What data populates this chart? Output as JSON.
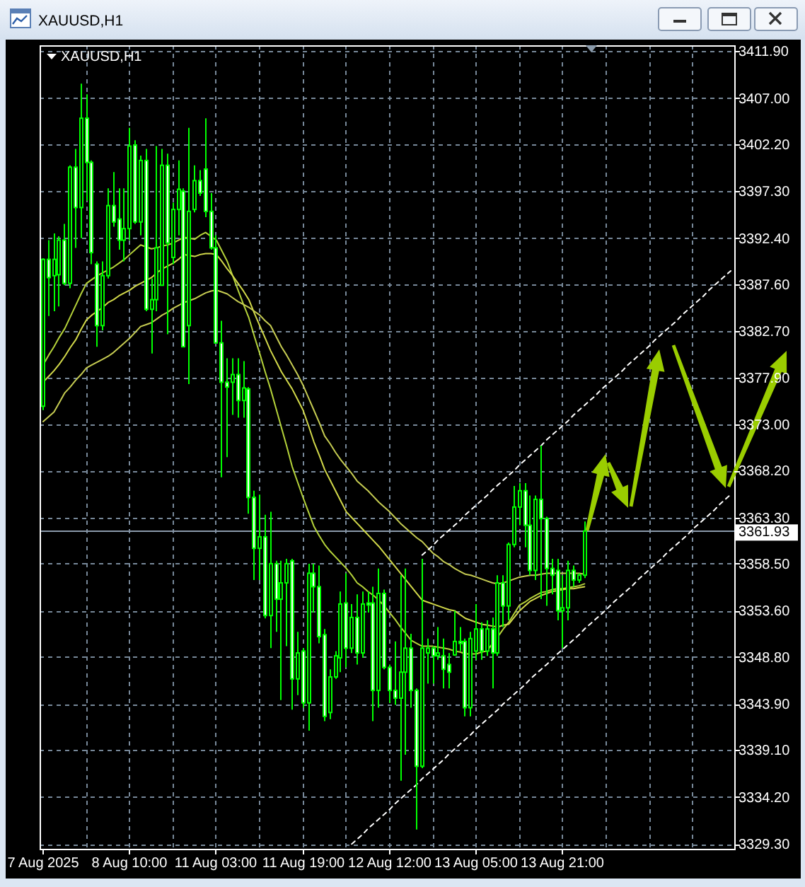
{
  "chart_data": {
    "type": "candlestick",
    "title": "XAUUSD,H1",
    "subtitle": "XAUUSD,H1",
    "categories": [
      "7 Aug 2025",
      null,
      null,
      null,
      null,
      null,
      null,
      null,
      null,
      null,
      null,
      null,
      null,
      null,
      null,
      null,
      "8 Aug 10:00",
      null,
      null,
      null,
      null,
      null,
      null,
      null,
      null,
      null,
      null,
      null,
      null,
      null,
      null,
      null,
      "11 Aug 03:00",
      null,
      null,
      null,
      null,
      null,
      null,
      null,
      null,
      null,
      null,
      null,
      null,
      null,
      null,
      null,
      "11 Aug 19:00",
      null,
      null,
      null,
      null,
      null,
      null,
      null,
      null,
      null,
      null,
      null,
      null,
      null,
      null,
      null,
      "12 Aug 12:00",
      null,
      null,
      null,
      null,
      null,
      null,
      null,
      null,
      null,
      null,
      null,
      null,
      null,
      null,
      null,
      "13 Aug 05:00",
      null,
      null,
      null,
      null,
      null,
      null,
      null,
      null,
      null,
      null,
      null,
      null,
      null,
      null,
      null,
      "13 Aug 21:00",
      null,
      null,
      null,
      null,
      null,
      null,
      null,
      null,
      null,
      null,
      null,
      null,
      null,
      null,
      null,
      null,
      null,
      null,
      null,
      null,
      null,
      null,
      null,
      null,
      null,
      null,
      null,
      null,
      null,
      null,
      null
    ],
    "ylim": [
      3328.8,
      3412.5
    ],
    "yticks": [
      {
        "value": 3411.9,
        "label": "3411.90"
      },
      {
        "value": 3407.0,
        "label": "3407.00"
      },
      {
        "value": 3402.2,
        "label": "3402.20"
      },
      {
        "value": 3397.3,
        "label": "3397.30"
      },
      {
        "value": 3392.4,
        "label": "3392.40"
      },
      {
        "value": 3387.6,
        "label": "3387.60"
      },
      {
        "value": 3382.7,
        "label": "3382.70"
      },
      {
        "value": 3377.9,
        "label": "3377.90"
      },
      {
        "value": 3373.0,
        "label": "3373.00"
      },
      {
        "value": 3368.2,
        "label": "3368.20"
      },
      {
        "value": 3363.3,
        "label": "3363.30"
      },
      {
        "value": 3358.5,
        "label": "3358.50"
      },
      {
        "value": 3353.6,
        "label": "3353.60"
      },
      {
        "value": 3348.8,
        "label": "3348.80"
      },
      {
        "value": 3343.9,
        "label": "3343.90"
      },
      {
        "value": 3339.1,
        "label": "3339.10"
      },
      {
        "value": 3334.2,
        "label": "3334.20"
      },
      {
        "value": 3329.3,
        "label": "3329.30"
      }
    ],
    "grid": true,
    "ref_lines": [
      {
        "axis": "y",
        "value": 3361.93,
        "label": "3361.93",
        "color": "#8a99aa"
      }
    ],
    "series": [
      {
        "type": "line",
        "color": "#b5d33a",
        "values": [
          3379.2,
          3380.2,
          3381.1,
          3382.1,
          3383.0,
          3384.2,
          3385.4,
          3386.6,
          3387.7,
          3388.1,
          3388.5,
          3388.8,
          3389.1,
          3389.4,
          3389.8,
          3390.2,
          3390.7,
          3391.2,
          3391.7,
          3391.5,
          3391.3,
          3391.4,
          3391.6,
          3391.7,
          3391.9,
          3392.2,
          3392.5,
          3392.4,
          3392.3,
          3392.7,
          3393.0,
          3392.6,
          3392.2,
          3391.1,
          3390.0,
          3388.5,
          3387.0,
          3385.5,
          3384.1,
          3382.2,
          3380.4,
          3378.5,
          3376.7,
          3374.7,
          3372.7,
          3370.7,
          3368.6,
          3367.0,
          3365.4,
          3363.9,
          3362.4,
          3361.4,
          3360.5,
          3359.8,
          3359.2,
          3358.6,
          3358.0,
          3357.3,
          3356.5,
          3356.1,
          3355.6,
          3355.2,
          3354.7,
          3354.1,
          3353.4,
          3352.7,
          3351.9,
          3351.2,
          3350.5,
          3350.2,
          3349.9,
          3349.9,
          3349.9,
          3349.8,
          3349.7,
          3349.6,
          3349.4,
          3349.3,
          3349.1,
          3349.1,
          3349.1,
          3349.3,
          3349.4,
          3350.2,
          3350.9,
          3351.7,
          3352.4,
          3353.3,
          3354.2,
          3354.5,
          3354.9,
          3355.2,
          3355.5,
          3355.6,
          3355.8,
          3355.9,
          3355.9,
          3356.0,
          3356.1,
          3356.2,
          3356.4,
          null,
          null,
          null,
          null,
          null,
          null,
          null,
          null,
          null,
          null,
          null,
          null,
          null,
          null,
          null,
          null,
          null,
          null,
          null,
          null,
          null,
          null,
          null,
          null,
          null,
          null,
          null
        ]
      },
      {
        "type": "line",
        "color": "#d2d94a",
        "values": [
          3377.4,
          3378.0,
          3378.6,
          3379.3,
          3380.1,
          3381.0,
          3381.8,
          3382.9,
          3383.9,
          3384.4,
          3384.8,
          3385.2,
          3385.7,
          3386.0,
          3386.4,
          3386.7,
          3387.0,
          3387.4,
          3387.7,
          3388.0,
          3388.3,
          3388.8,
          3389.2,
          3389.5,
          3389.8,
          3390.2,
          3390.7,
          3390.6,
          3390.5,
          3390.7,
          3390.8,
          3390.8,
          3390.7,
          3390.0,
          3389.2,
          3388.5,
          3387.7,
          3386.9,
          3386.0,
          3384.6,
          3383.3,
          3382.0,
          3380.7,
          3379.6,
          3378.5,
          3377.6,
          3376.7,
          3375.6,
          3374.5,
          3372.9,
          3371.2,
          3369.8,
          3368.3,
          3367.2,
          3366.1,
          3365.0,
          3363.9,
          3363.3,
          3362.7,
          3362.1,
          3361.5,
          3360.9,
          3360.3,
          3359.6,
          3358.9,
          3358.2,
          3357.5,
          3356.8,
          3356.1,
          3355.4,
          3354.7,
          3354.5,
          3354.3,
          3354.1,
          3353.9,
          3353.7,
          3353.6,
          3353.2,
          3352.8,
          3352.6,
          3352.4,
          3352.2,
          3352.1,
          3352.0,
          3351.9,
          3352.1,
          3352.2,
          3352.9,
          3353.6,
          3354.1,
          3354.6,
          3354.9,
          3355.2,
          3355.4,
          3355.6,
          3355.7,
          3355.8,
          3355.9,
          3355.9,
          3356.0,
          3356.1,
          null,
          null,
          null,
          null,
          null,
          null,
          null,
          null,
          null,
          null,
          null,
          null,
          null,
          null,
          null,
          null,
          null,
          null,
          null,
          null,
          null,
          null,
          null,
          null,
          null,
          null,
          null
        ]
      },
      {
        "type": "line",
        "color": "#c6cc52",
        "values": [
          3373.3,
          3373.8,
          3374.3,
          3375.3,
          3376.3,
          3376.9,
          3377.6,
          3378.2,
          3378.9,
          3379.2,
          3379.5,
          3379.8,
          3380.1,
          3380.5,
          3381.0,
          3381.5,
          3382.0,
          3382.6,
          3383.2,
          3383.4,
          3383.6,
          3384.0,
          3384.4,
          3384.7,
          3385.1,
          3385.4,
          3385.7,
          3385.9,
          3386.1,
          3386.4,
          3386.7,
          3386.9,
          3387.0,
          3386.8,
          3386.6,
          3386.2,
          3385.8,
          3385.5,
          3385.2,
          3384.8,
          3384.4,
          3383.8,
          3383.3,
          3382.2,
          3381.1,
          3380.2,
          3379.2,
          3378.2,
          3377.1,
          3375.8,
          3374.5,
          3373.2,
          3371.8,
          3371.0,
          3370.1,
          3369.3,
          3368.6,
          3367.9,
          3367.1,
          3366.6,
          3366.1,
          3365.5,
          3364.9,
          3364.4,
          3363.9,
          3363.3,
          3362.7,
          3362.2,
          3361.7,
          3361.2,
          3360.8,
          3360.2,
          3359.6,
          3359.2,
          3358.7,
          3358.4,
          3358.0,
          3357.7,
          3357.4,
          3357.3,
          3357.1,
          3356.9,
          3356.7,
          3356.5,
          3356.4,
          3356.5,
          3356.7,
          3356.9,
          3357.1,
          3357.2,
          3357.3,
          3357.3,
          3357.4,
          3357.5,
          3357.5,
          3357.5,
          3357.5,
          3357.5,
          3357.5,
          3357.5,
          3357.4,
          null,
          null,
          null,
          null,
          null,
          null,
          null,
          null,
          null,
          null,
          null,
          null,
          null,
          null,
          null,
          null,
          null,
          null,
          null,
          null,
          null,
          null,
          null,
          null,
          null,
          null,
          null
        ]
      },
      {
        "type": "line",
        "color": "#ffffff",
        "line_style": "dashed",
        "values": [
          null,
          null,
          null,
          null,
          null,
          null,
          null,
          null,
          null,
          null,
          null,
          null,
          null,
          null,
          null,
          null,
          null,
          null,
          null,
          null,
          null,
          null,
          null,
          null,
          null,
          null,
          null,
          null,
          null,
          null,
          null,
          null,
          null,
          null,
          null,
          null,
          null,
          null,
          null,
          null,
          null,
          null,
          null,
          null,
          null,
          null,
          null,
          null,
          null,
          null,
          null,
          null,
          null,
          null,
          null,
          null,
          null,
          null,
          null,
          null,
          null,
          null,
          null,
          null,
          null,
          null,
          null,
          null,
          null,
          null,
          3359.4,
          3359.9,
          3360.4,
          3361.0,
          3361.5,
          3362.0,
          3362.5,
          3363.0,
          3363.6,
          3364.1,
          3364.6,
          3365.1,
          3365.6,
          3366.2,
          3366.7,
          3367.2,
          3367.7,
          3368.2,
          3368.8,
          3369.3,
          3369.8,
          3370.3,
          3370.8,
          3371.4,
          3371.9,
          3372.4,
          3372.9,
          3373.4,
          3374.0,
          3374.5,
          3375.0,
          3375.5,
          3376.0,
          3376.6,
          3377.1,
          3377.6,
          3378.1,
          3378.6,
          3379.2,
          3379.7,
          3380.2,
          3380.7,
          3381.2,
          3381.8,
          3382.3,
          3382.8,
          3383.3,
          3383.8,
          3384.4,
          3384.9,
          3385.4,
          3385.9,
          3386.4,
          3387.0,
          3387.5,
          3388.0,
          3388.5,
          3389.0
        ]
      },
      {
        "type": "line",
        "color": "#ffffff",
        "line_style": "dashed",
        "values": [
          null,
          null,
          null,
          null,
          null,
          null,
          null,
          null,
          null,
          null,
          null,
          null,
          null,
          null,
          null,
          null,
          null,
          null,
          null,
          null,
          null,
          null,
          null,
          null,
          null,
          null,
          null,
          null,
          null,
          null,
          null,
          null,
          null,
          null,
          null,
          null,
          null,
          null,
          null,
          null,
          null,
          null,
          null,
          null,
          null,
          null,
          null,
          null,
          null,
          null,
          null,
          null,
          null,
          null,
          null,
          null,
          null,
          3329.3,
          3329.8,
          3330.3,
          3330.9,
          3331.4,
          3331.9,
          3332.4,
          3332.9,
          3333.5,
          3334.0,
          3334.5,
          3335.0,
          3335.5,
          3336.1,
          3336.6,
          3337.1,
          3337.6,
          3338.1,
          3338.7,
          3339.2,
          3339.7,
          3340.2,
          3340.7,
          3341.3,
          3341.8,
          3342.3,
          3342.8,
          3343.3,
          3343.9,
          3344.4,
          3344.9,
          3345.4,
          3345.9,
          3346.5,
          3347.0,
          3347.5,
          3348.0,
          3348.5,
          3349.1,
          3349.6,
          3350.1,
          3350.6,
          3351.1,
          3351.7,
          3352.2,
          3352.7,
          3353.2,
          3353.7,
          3354.3,
          3354.8,
          3355.3,
          3355.8,
          3356.3,
          3356.9,
          3357.4,
          3357.9,
          3358.4,
          3358.9,
          3359.5,
          3360.0,
          3360.5,
          3361.0,
          3361.5,
          3362.1,
          3362.6,
          3363.1,
          3363.6,
          3364.1,
          3364.7,
          3365.2,
          3365.7
        ]
      },
      {
        "color": "#00ff00",
        "colors": [
          "#000000",
          "#ffffff",
          "#000000",
          "#000000",
          "#ffffff",
          "#000000",
          "#ffffff",
          "#000000",
          "#ffffff",
          "#ffffff",
          "#ffffff",
          "#000000",
          "#000000",
          "#ffffff",
          "#ffffff",
          "#000000",
          "#000000",
          "#ffffff",
          "#000000",
          "#ffffff",
          "#000000",
          "#000000",
          "#000000",
          "#ffffff",
          "#000000",
          "#000000",
          "#ffffff",
          "#000000",
          "#000000",
          "#ffffff",
          "#ffffff",
          "#ffffff",
          "#ffffff",
          "#ffffff",
          "#ffffff",
          "#000000",
          "#ffffff",
          "#000000",
          "#ffffff",
          "#ffffff",
          "#000000",
          "#ffffff",
          "#000000",
          "#ffffff",
          "#000000",
          "#000000",
          "#ffffff",
          "#000000",
          "#ffffff",
          "#000000",
          "#ffffff",
          "#ffffff",
          "#ffffff",
          "#000000",
          "#000000",
          "#000000",
          "#ffffff",
          "#000000",
          "#ffffff",
          "#000000",
          "#ffffff",
          "#ffffff",
          "#000000",
          "#ffffff",
          "#ffffff",
          "#ffffff",
          "#000000",
          "#000000",
          "#ffffff",
          "#ffffff",
          "#000000",
          "#000000",
          "#ffffff",
          "#000000",
          "#ffffff",
          "#ffffff",
          "#000000",
          "#ffffff",
          "#ffffff",
          "#000000",
          "#000000",
          "#ffffff",
          "#000000",
          "#ffffff",
          "#000000",
          "#ffffff",
          "#000000",
          "#000000",
          "#000000",
          "#ffffff",
          "#ffffff",
          "#000000",
          "#ffffff",
          "#ffffff",
          "#ffffff",
          "#ffffff",
          "#000000",
          "#000000",
          "#ffffff",
          "#000000",
          "#000000",
          null,
          null,
          null,
          null,
          null,
          null,
          null,
          null,
          null,
          null,
          null,
          null,
          null,
          null,
          null,
          null,
          null,
          null,
          null,
          null,
          null,
          null,
          null,
          null,
          null,
          null,
          null
        ],
        "ohlc": [
          [
            3374.9,
            3390.3,
            3374.5,
            3390.2
          ],
          [
            3390.2,
            3392.2,
            3384.3,
            3388.3
          ],
          [
            3388.5,
            3392.9,
            3384.8,
            3390.2
          ],
          [
            3388.6,
            3392.6,
            3385.3,
            3392.2
          ],
          [
            3392.2,
            3393.9,
            3387.5,
            3387.7
          ],
          [
            3387.7,
            3400.0,
            3387.2,
            3399.8
          ],
          [
            3399.8,
            3401.7,
            3391.4,
            3395.6
          ],
          [
            3395.6,
            3408.5,
            3392.4,
            3404.9
          ],
          [
            3404.9,
            3407.4,
            3396.3,
            3400.3
          ],
          [
            3400.3,
            3400.5,
            3389.7,
            3390.9
          ],
          [
            3389.7,
            3390.0,
            3381.1,
            3383.3
          ],
          [
            3383.3,
            3390.0,
            3382.8,
            3388.5
          ],
          [
            3388.5,
            3397.6,
            3388.2,
            3395.8
          ],
          [
            3395.8,
            3399.3,
            3393.6,
            3394.1
          ],
          [
            3394.4,
            3397.6,
            3391.2,
            3392.2
          ],
          [
            3392.2,
            3397.6,
            3390.0,
            3393.4
          ],
          [
            3393.4,
            3403.9,
            3392.2,
            3402.0
          ],
          [
            3402.1,
            3402.6,
            3393.9,
            3394.1
          ],
          [
            3394.1,
            3401.0,
            3392.7,
            3400.5
          ],
          [
            3400.5,
            3401.7,
            3384.8,
            3385.0
          ],
          [
            3385.0,
            3388.2,
            3380.4,
            3386.0
          ],
          [
            3386.0,
            3402.0,
            3384.8,
            3391.4
          ],
          [
            3387.5,
            3401.7,
            3387.5,
            3400.0
          ],
          [
            3400.0,
            3401.2,
            3382.4,
            3391.9
          ],
          [
            3390.4,
            3396.1,
            3389.7,
            3395.4
          ],
          [
            3395.4,
            3400.5,
            3392.7,
            3397.5
          ],
          [
            3397.3,
            3397.6,
            3381.1,
            3381.1
          ],
          [
            3383.3,
            3403.9,
            3377.2,
            3395.2
          ],
          [
            3395.4,
            3400.0,
            3395.1,
            3398.4
          ],
          [
            3398.4,
            3399.5,
            3396.8,
            3397.1
          ],
          [
            3399.6,
            3404.9,
            3394.6,
            3395.2
          ],
          [
            3395.2,
            3397.1,
            3391.2,
            3391.4
          ],
          [
            3391.4,
            3392.7,
            3381.4,
            3381.5
          ],
          [
            3381.5,
            3383.8,
            3367.5,
            3377.4
          ],
          [
            3377.4,
            3379.9,
            3369.6,
            3376.9
          ],
          [
            3377.4,
            3379.9,
            3374.0,
            3378.2
          ],
          [
            3378.2,
            3379.9,
            3373.7,
            3375.5
          ],
          [
            3375.5,
            3379.6,
            3373.7,
            3376.8
          ],
          [
            3376.7,
            3376.9,
            3363.7,
            3365.4
          ],
          [
            3365.4,
            3366.1,
            3356.8,
            3360.1
          ],
          [
            3360.1,
            3365.7,
            3356.8,
            3361.3
          ],
          [
            3361.3,
            3363.6,
            3352.8,
            3353.1
          ],
          [
            3353.1,
            3363.9,
            3349.7,
            3358.5
          ],
          [
            3358.5,
            3358.8,
            3351.4,
            3354.8
          ],
          [
            3354.8,
            3358.8,
            3344.3,
            3356.5
          ],
          [
            3356.5,
            3359.0,
            3349.9,
            3358.5
          ],
          [
            3358.8,
            3359.0,
            3343.3,
            3346.5
          ],
          [
            3346.5,
            3351.4,
            3344.8,
            3349.2
          ],
          [
            3349.4,
            3349.7,
            3343.5,
            3344.0
          ],
          [
            3344.0,
            3358.5,
            3341.1,
            3357.5
          ],
          [
            3357.5,
            3358.5,
            3353.4,
            3356.1
          ],
          [
            3356.1,
            3358.3,
            3350.2,
            3350.9
          ],
          [
            3351.1,
            3351.7,
            3342.1,
            3342.6
          ],
          [
            3343.0,
            3347.5,
            3342.3,
            3346.7
          ],
          [
            3346.7,
            3349.4,
            3346.5,
            3348.9
          ],
          [
            3348.7,
            3355.6,
            3347.2,
            3354.3
          ],
          [
            3354.4,
            3357.5,
            3347.7,
            3349.7
          ],
          [
            3349.7,
            3354.3,
            3349.2,
            3352.9
          ],
          [
            3352.9,
            3355.3,
            3348.0,
            3349.2
          ],
          [
            3349.2,
            3355.6,
            3348.7,
            3354.3
          ],
          [
            3354.4,
            3355.6,
            3353.4,
            3354.2
          ],
          [
            3354.4,
            3356.1,
            3342.1,
            3345.3
          ],
          [
            3345.3,
            3358.0,
            3343.5,
            3355.4
          ],
          [
            3355.4,
            3355.8,
            3347.5,
            3347.7
          ],
          [
            3347.7,
            3348.0,
            3344.0,
            3345.3
          ],
          [
            3345.3,
            3350.4,
            3343.8,
            3344.5
          ],
          [
            3344.5,
            3357.3,
            3335.9,
            3347.2
          ],
          [
            3347.2,
            3358.0,
            3338.6,
            3349.7
          ],
          [
            3349.7,
            3351.2,
            3343.5,
            3345.3
          ],
          [
            3345.3,
            3345.5,
            3330.8,
            3337.4
          ],
          [
            3337.4,
            3359.0,
            3337.2,
            3349.7
          ],
          [
            3349.2,
            3350.7,
            3346.0,
            3349.7
          ],
          [
            3349.7,
            3349.9,
            3346.0,
            3348.9
          ],
          [
            3348.9,
            3351.9,
            3348.5,
            3349.2
          ],
          [
            3348.9,
            3350.7,
            3345.5,
            3347.5
          ],
          [
            3348.0,
            3349.2,
            3345.5,
            3347.2
          ],
          [
            3349.0,
            3353.6,
            3348.9,
            3350.4
          ],
          [
            3350.4,
            3351.9,
            3349.4,
            3350.2
          ],
          [
            3350.4,
            3350.7,
            3342.6,
            3343.5
          ],
          [
            3343.5,
            3351.4,
            3342.6,
            3350.7
          ],
          [
            3349.4,
            3354.3,
            3348.5,
            3351.7
          ],
          [
            3351.7,
            3352.4,
            3348.5,
            3349.4
          ],
          [
            3349.4,
            3352.6,
            3348.9,
            3351.7
          ],
          [
            3351.7,
            3352.9,
            3345.5,
            3349.2
          ],
          [
            3349.2,
            3357.3,
            3348.9,
            3356.5
          ],
          [
            3356.5,
            3357.3,
            3351.9,
            3354.1
          ],
          [
            3354.1,
            3360.7,
            3352.6,
            3360.5
          ],
          [
            3360.5,
            3366.6,
            3360.2,
            3364.4
          ],
          [
            3364.4,
            3366.9,
            3362.5,
            3366.1
          ],
          [
            3366.1,
            3366.9,
            3360.2,
            3362.5
          ],
          [
            3362.5,
            3365.6,
            3357.3,
            3357.8
          ],
          [
            3357.8,
            3365.6,
            3356.8,
            3365.2
          ],
          [
            3365.2,
            3370.8,
            3354.8,
            3363.2
          ],
          [
            3363.2,
            3363.4,
            3354.1,
            3358.0
          ],
          [
            3358.0,
            3359.0,
            3355.3,
            3357.3
          ],
          [
            3357.8,
            3359.0,
            3352.6,
            3353.6
          ],
          [
            3353.6,
            3357.3,
            3349.7,
            3353.9
          ],
          [
            3353.9,
            3358.8,
            3352.6,
            3357.8
          ],
          [
            3357.8,
            3358.3,
            3356.1,
            3356.8
          ],
          [
            3356.8,
            3357.5,
            3356.5,
            3357.3
          ],
          [
            3357.3,
            3362.9,
            3357.0,
            3361.9
          ],
          null,
          null,
          null,
          null,
          null,
          null,
          null,
          null,
          null,
          null,
          null,
          null,
          null,
          null,
          null,
          null,
          null,
          null,
          null,
          null,
          null,
          null,
          null,
          null,
          null,
          null,
          null
        ]
      }
    ]
  }
}
